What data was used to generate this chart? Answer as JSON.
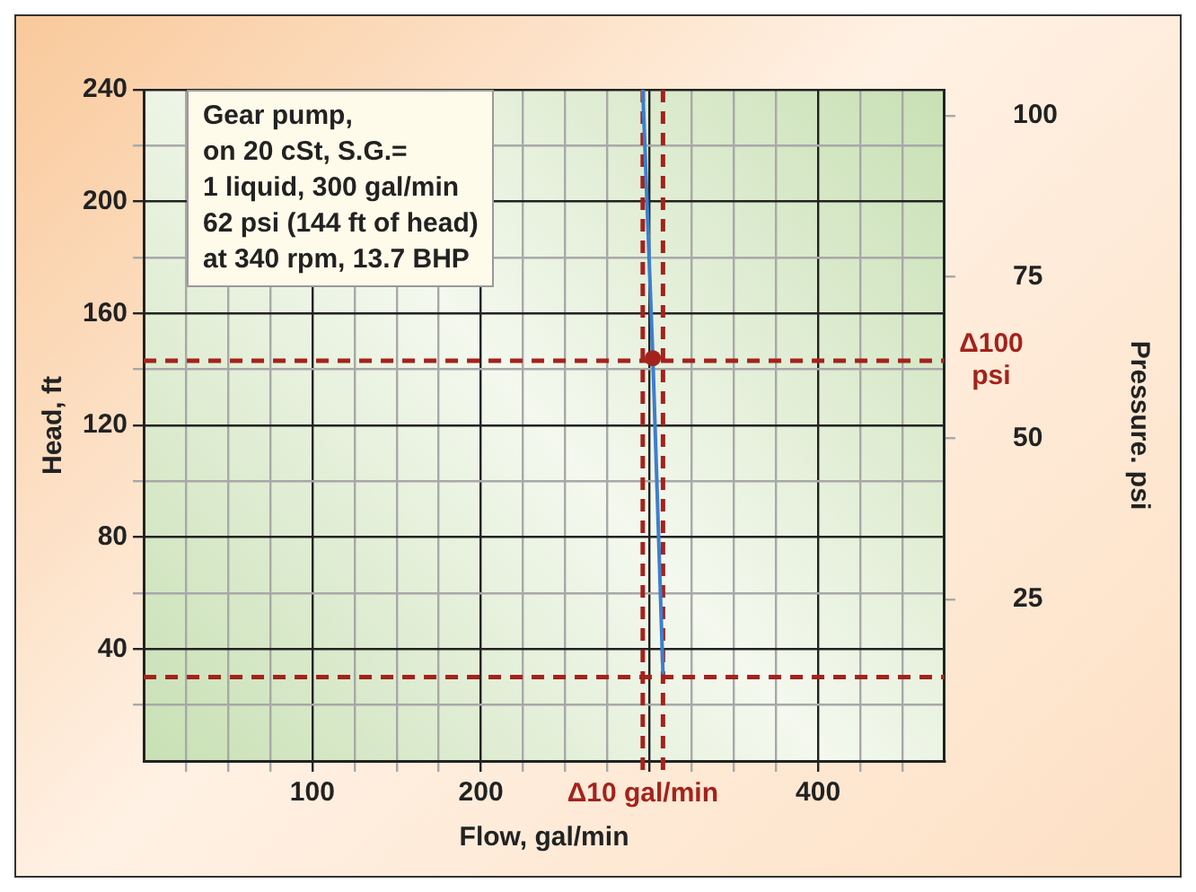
{
  "chart_data": {
    "type": "line",
    "xlabel": "Flow, gal/min",
    "ylabel": "Head, ft",
    "y2label": "Pressure. psi",
    "annotations": [
      "Gear pump,\non 20 cSt, S.G.=\n1 liquid, 300 gal/min\n62 psi (144 ft of head)\nat 340 rpm, 13.7 BHP"
    ],
    "series": [
      {
        "color": "#3a7fd0",
        "marker": "none",
        "x": [
          296,
          302,
          308
        ],
        "values": [
          240,
          144,
          31
        ]
      },
      {
        "type": "scatter",
        "marker": "circle",
        "color": "#a3231c",
        "x": [
          302
        ],
        "values": [
          144
        ]
      }
    ],
    "xlim": [
      0,
      475
    ],
    "ylim": [
      0,
      240
    ],
    "y2lim": [
      0,
      104
    ],
    "xticks": [
      {
        "value": 25,
        "label": null
      },
      {
        "value": 50,
        "label": null
      },
      {
        "value": 75,
        "label": null
      },
      100,
      {
        "value": 125,
        "label": null
      },
      {
        "value": 150,
        "label": null
      },
      {
        "value": 175,
        "label": null
      },
      200,
      {
        "value": 225,
        "label": null
      },
      {
        "value": 250,
        "label": null
      },
      {
        "value": 275,
        "label": null
      },
      {
        "value": 300,
        "label": null
      },
      {
        "value": 325,
        "label": null
      },
      {
        "value": 350,
        "label": null
      },
      {
        "value": 375,
        "label": null
      },
      400,
      {
        "value": 425,
        "label": null
      },
      {
        "value": 450,
        "label": null
      }
    ],
    "yticks": [
      {
        "value": 20,
        "label": null
      },
      40,
      {
        "value": 60,
        "label": null
      },
      80,
      {
        "value": 100,
        "label": null
      },
      120,
      {
        "value": 140,
        "label": null
      },
      160,
      {
        "value": 180,
        "label": null
      },
      200,
      {
        "value": 220,
        "label": null
      },
      240
    ],
    "y2ticks": [
      25,
      50,
      75,
      100
    ],
    "ref_lines": [
      {
        "axis": "x",
        "value": 296,
        "label": "Δ10 gal/min",
        "color": "#a3231c",
        "line_style": "dashed"
      },
      {
        "axis": "x",
        "value": 308,
        "label": null,
        "color": "#a3231c",
        "line_style": "dashed"
      },
      {
        "axis": "y2",
        "value": 62,
        "label": "Δ100 psi",
        "color": "#a3231c",
        "line_style": "dashed"
      },
      {
        "axis": "y2",
        "value": 13,
        "label": null,
        "color": "#a3231c",
        "line_style": "dashed"
      }
    ],
    "grid": true,
    "legend": false,
    "line_style": "solid"
  }
}
